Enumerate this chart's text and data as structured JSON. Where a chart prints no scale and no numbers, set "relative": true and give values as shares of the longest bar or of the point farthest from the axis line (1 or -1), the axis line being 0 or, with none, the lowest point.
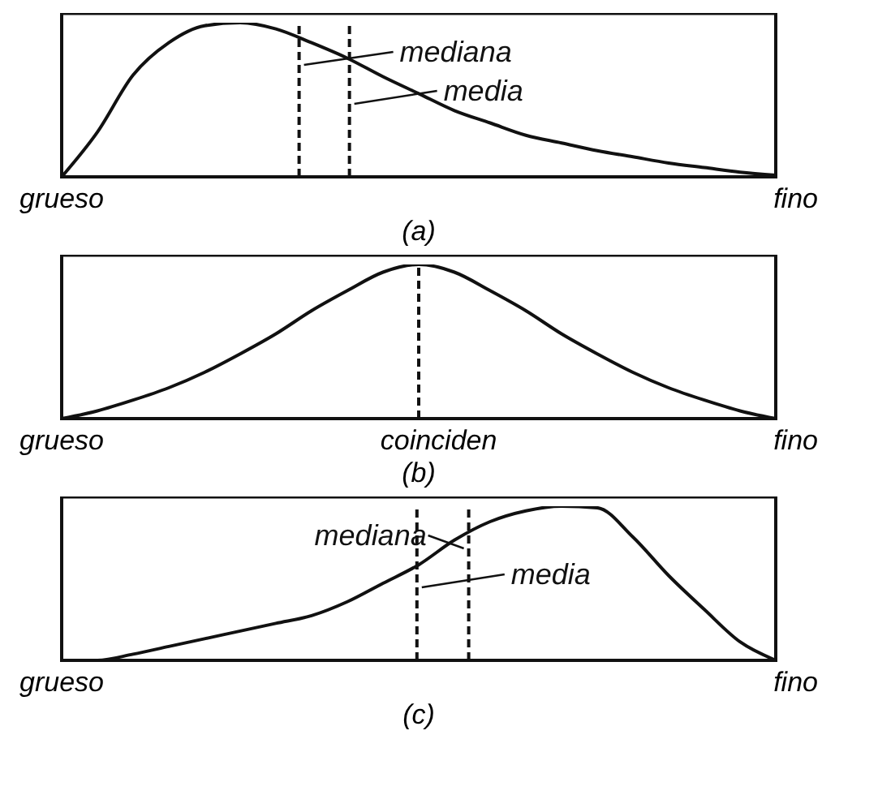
{
  "chart_data": [
    {
      "type": "line",
      "title": "(a)",
      "relative": true,
      "categories": [
        null,
        null,
        null,
        null,
        null,
        null,
        null,
        null,
        null,
        null,
        null,
        null,
        null,
        null,
        null,
        null,
        null,
        null,
        null,
        null,
        null
      ],
      "series": [
        {
          "color": "#111111",
          "values": [
            0,
            0.29,
            0.66,
            0.87,
            0.98,
            1,
            0.96,
            0.87,
            0.77,
            0.65,
            0.54,
            0.43,
            0.35,
            0.27,
            0.22,
            0.17,
            0.13,
            0.09,
            0.06,
            0.03,
            0.01
          ]
        }
      ],
      "annotations": [
        "mediana",
        "media",
        "grueso",
        "fino"
      ],
      "marker": "none",
      "line_style": "solid"
    },
    {
      "type": "line",
      "title": "(b)",
      "relative": true,
      "categories": [
        null,
        null,
        null,
        null,
        null,
        null,
        null,
        null,
        null,
        null,
        null,
        null,
        null,
        null,
        null,
        null,
        null,
        null,
        null,
        null,
        null
      ],
      "series": [
        {
          "color": "#111111",
          "values": [
            0,
            0.05,
            0.12,
            0.2,
            0.3,
            0.42,
            0.55,
            0.7,
            0.83,
            0.95,
            1,
            0.95,
            0.83,
            0.7,
            0.55,
            0.42,
            0.3,
            0.2,
            0.12,
            0.05,
            0
          ]
        }
      ],
      "annotations": [
        "grueso",
        "coinciden",
        "fino"
      ],
      "marker": "none",
      "line_style": "solid"
    },
    {
      "type": "line",
      "title": "(c)",
      "relative": true,
      "categories": [
        null,
        null,
        null,
        null,
        null,
        null,
        null,
        null,
        null,
        null,
        null,
        null,
        null,
        null,
        null,
        null,
        null,
        null,
        null,
        null,
        null
      ],
      "series": [
        {
          "color": "#111111",
          "values": [
            0,
            0,
            0.04,
            0.09,
            0.14,
            0.19,
            0.24,
            0.29,
            0.38,
            0.5,
            0.62,
            0.78,
            0.9,
            0.97,
            1,
            0.99,
            0.8,
            0.55,
            0.33,
            0.12,
            0
          ]
        }
      ],
      "annotations": [
        "mediana",
        "media",
        "grueso",
        "fino"
      ],
      "marker": "none",
      "line_style": "solid"
    }
  ]
}
